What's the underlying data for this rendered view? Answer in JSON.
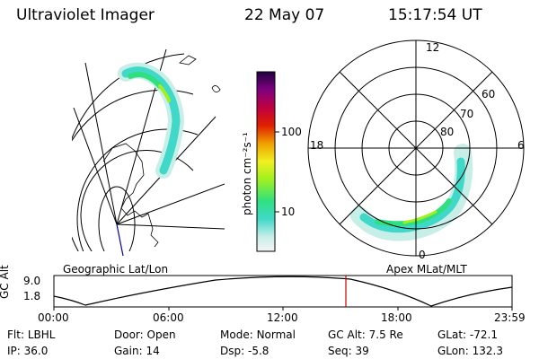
{
  "header": {
    "instrument": "Ultraviolet Imager",
    "date": "22 May 07",
    "time": "15:17:54 UT"
  },
  "geo_panel": {
    "label": "Geographic Lat/Lon"
  },
  "colorbar": {
    "label": "photon cm⁻²s⁻¹",
    "ticks": [
      "100",
      "10"
    ]
  },
  "polar_plot": {
    "label": "Apex MLat/MLT",
    "mlt_labels": [
      "12",
      "18",
      "6",
      "0"
    ],
    "mlat_labels": [
      "60",
      "70",
      "80"
    ]
  },
  "altitude_plot": {
    "ylabel": "GC Alt",
    "yticks": [
      "9.0",
      "1.8"
    ],
    "xticks": [
      "00:00",
      "06:00",
      "12:00",
      "18:00",
      "23:59"
    ],
    "marker_time": "15:17:54",
    "marker_color": "#cc0000"
  },
  "status": {
    "row1": [
      {
        "key": "Flt:",
        "value": "LBHL"
      },
      {
        "key": "Door:",
        "value": "Open"
      },
      {
        "key": "Mode:",
        "value": "Normal"
      },
      {
        "key": "GC Alt:",
        "value": "7.5 Re"
      },
      {
        "key": "GLat:",
        "value": "-72.1"
      }
    ],
    "row2": [
      {
        "key": "IP:",
        "value": "36.0"
      },
      {
        "key": "Gain:",
        "value": "14"
      },
      {
        "key": "Dsp:",
        "value": "-5.8"
      },
      {
        "key": "Seq:",
        "value": "39"
      },
      {
        "key": "GLon:",
        "value": "132.3"
      }
    ]
  }
}
